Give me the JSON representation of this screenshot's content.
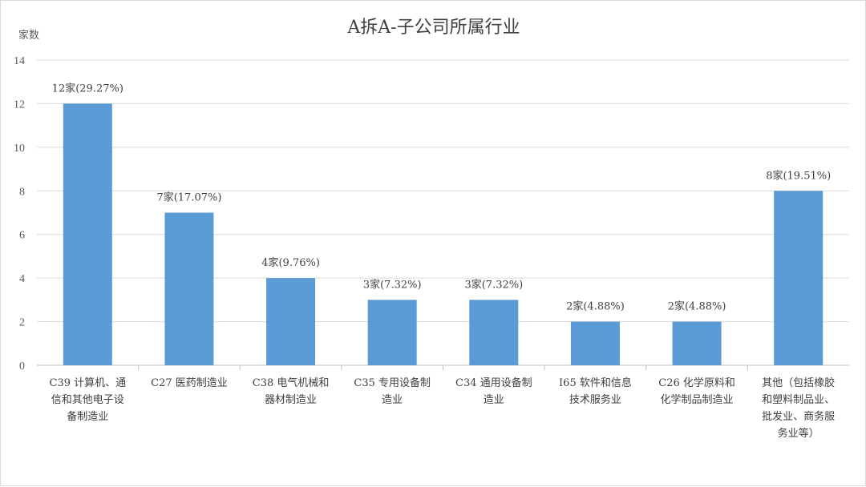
{
  "chart_data": {
    "type": "bar",
    "title": "A拆A-子公司所属行业",
    "ylabel": "家数",
    "xlabel": "",
    "ylim": [
      0,
      14
    ],
    "yticks": [
      0,
      2,
      4,
      6,
      8,
      10,
      12,
      14
    ],
    "grid": true,
    "legend": "none",
    "bar_color": "#5b9bd5",
    "categories": [
      [
        "C39 计算机、通",
        "信和其他电子设",
        "备制造业"
      ],
      [
        "C27 医药制造业"
      ],
      [
        "C38 电气机械和",
        "器材制造业"
      ],
      [
        "C35 专用设备制",
        "造业"
      ],
      [
        "C34 通用设备制",
        "造业"
      ],
      [
        "I65 软件和信息",
        "技术服务业"
      ],
      [
        "C26 化学原料和",
        "化学制品制造业"
      ],
      [
        "其他（包括橡胶",
        "和塑料制品业、",
        "批发业、商务服",
        "务业等）"
      ]
    ],
    "values": [
      12,
      7,
      4,
      3,
      3,
      2,
      2,
      8
    ],
    "data_labels": [
      "12家(29.27%)",
      "7家(17.07%)",
      "4家(9.76%)",
      "3家(7.32%)",
      "3家(7.32%)",
      "2家(4.88%)",
      "2家(4.88%)",
      "8家(19.51%)"
    ]
  }
}
